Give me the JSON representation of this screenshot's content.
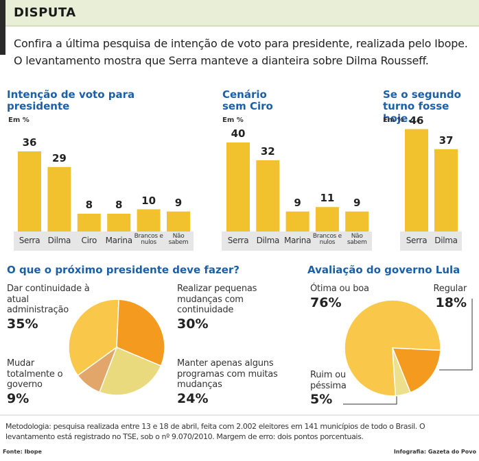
{
  "header": {
    "title": "DISPUTA",
    "lines": [
      "Confira a última pesquisa de intenção de voto para presidente, realizada pelo Ibope.",
      "O levantamento mostra que Serra manteve a dianteira sobre Dilma Rousseff."
    ]
  },
  "chart_data": [
    {
      "type": "bar",
      "title": "Intenção de voto para presidente",
      "unit": "Em %",
      "categories": [
        "Serra",
        "Dilma",
        "Ciro",
        "Marina",
        "Brancos e nulos",
        "Não sabem"
      ],
      "values": [
        36,
        29,
        8,
        8,
        10,
        9
      ],
      "color": "#f2c22e"
    },
    {
      "type": "bar",
      "title": "Cenário sem Ciro",
      "unit": "Em %",
      "categories": [
        "Serra",
        "Dilma",
        "Marina",
        "Brancos e nulos",
        "Não sabem"
      ],
      "values": [
        40,
        32,
        9,
        11,
        9
      ],
      "color": "#f2c22e"
    },
    {
      "type": "bar",
      "title": "Se o segundo turno fosse hoje...",
      "unit": "Em %",
      "categories": [
        "Serra",
        "Dilma"
      ],
      "values": [
        46,
        37
      ],
      "color": "#f2c22e"
    },
    {
      "type": "pie",
      "title": "O que o próximo presidente deve fazer?",
      "categories": [
        "Dar continuidade à atual administração",
        "Realizar pequenas mudanças com continuidade",
        "Manter apenas alguns programas com muitas mudanças",
        "Mudar totalmente o governo"
      ],
      "values": [
        35,
        30,
        24,
        9
      ],
      "value_labels": [
        "35%",
        "30%",
        "24%",
        "9%"
      ],
      "colors": [
        "#f9c74a",
        "#f39a1f",
        "#e9da7e",
        "#e2a66b"
      ]
    },
    {
      "type": "pie",
      "title": "Avaliação do governo Lula",
      "categories": [
        "Ótima ou boa",
        "Regular",
        "Ruim ou péssima"
      ],
      "values": [
        76,
        18,
        5
      ],
      "value_labels": [
        "76%",
        "18%",
        "5%"
      ],
      "colors": [
        "#f9c74a",
        "#f39a1f",
        "#ede08c"
      ]
    }
  ],
  "footer": {
    "methodology": "Metodologia: pesquisa realizada entre 13 e 18 de abril, feita com 2.002 eleitores em 141 municípios de todo o Brasil. O levantamento está registrado no TSE, sob o nº 9.070/2010. Margem de erro: dois pontos porcentuais.",
    "source": "Fonte: Ibope",
    "credit": "Infografia: Gazeta do Povo"
  }
}
